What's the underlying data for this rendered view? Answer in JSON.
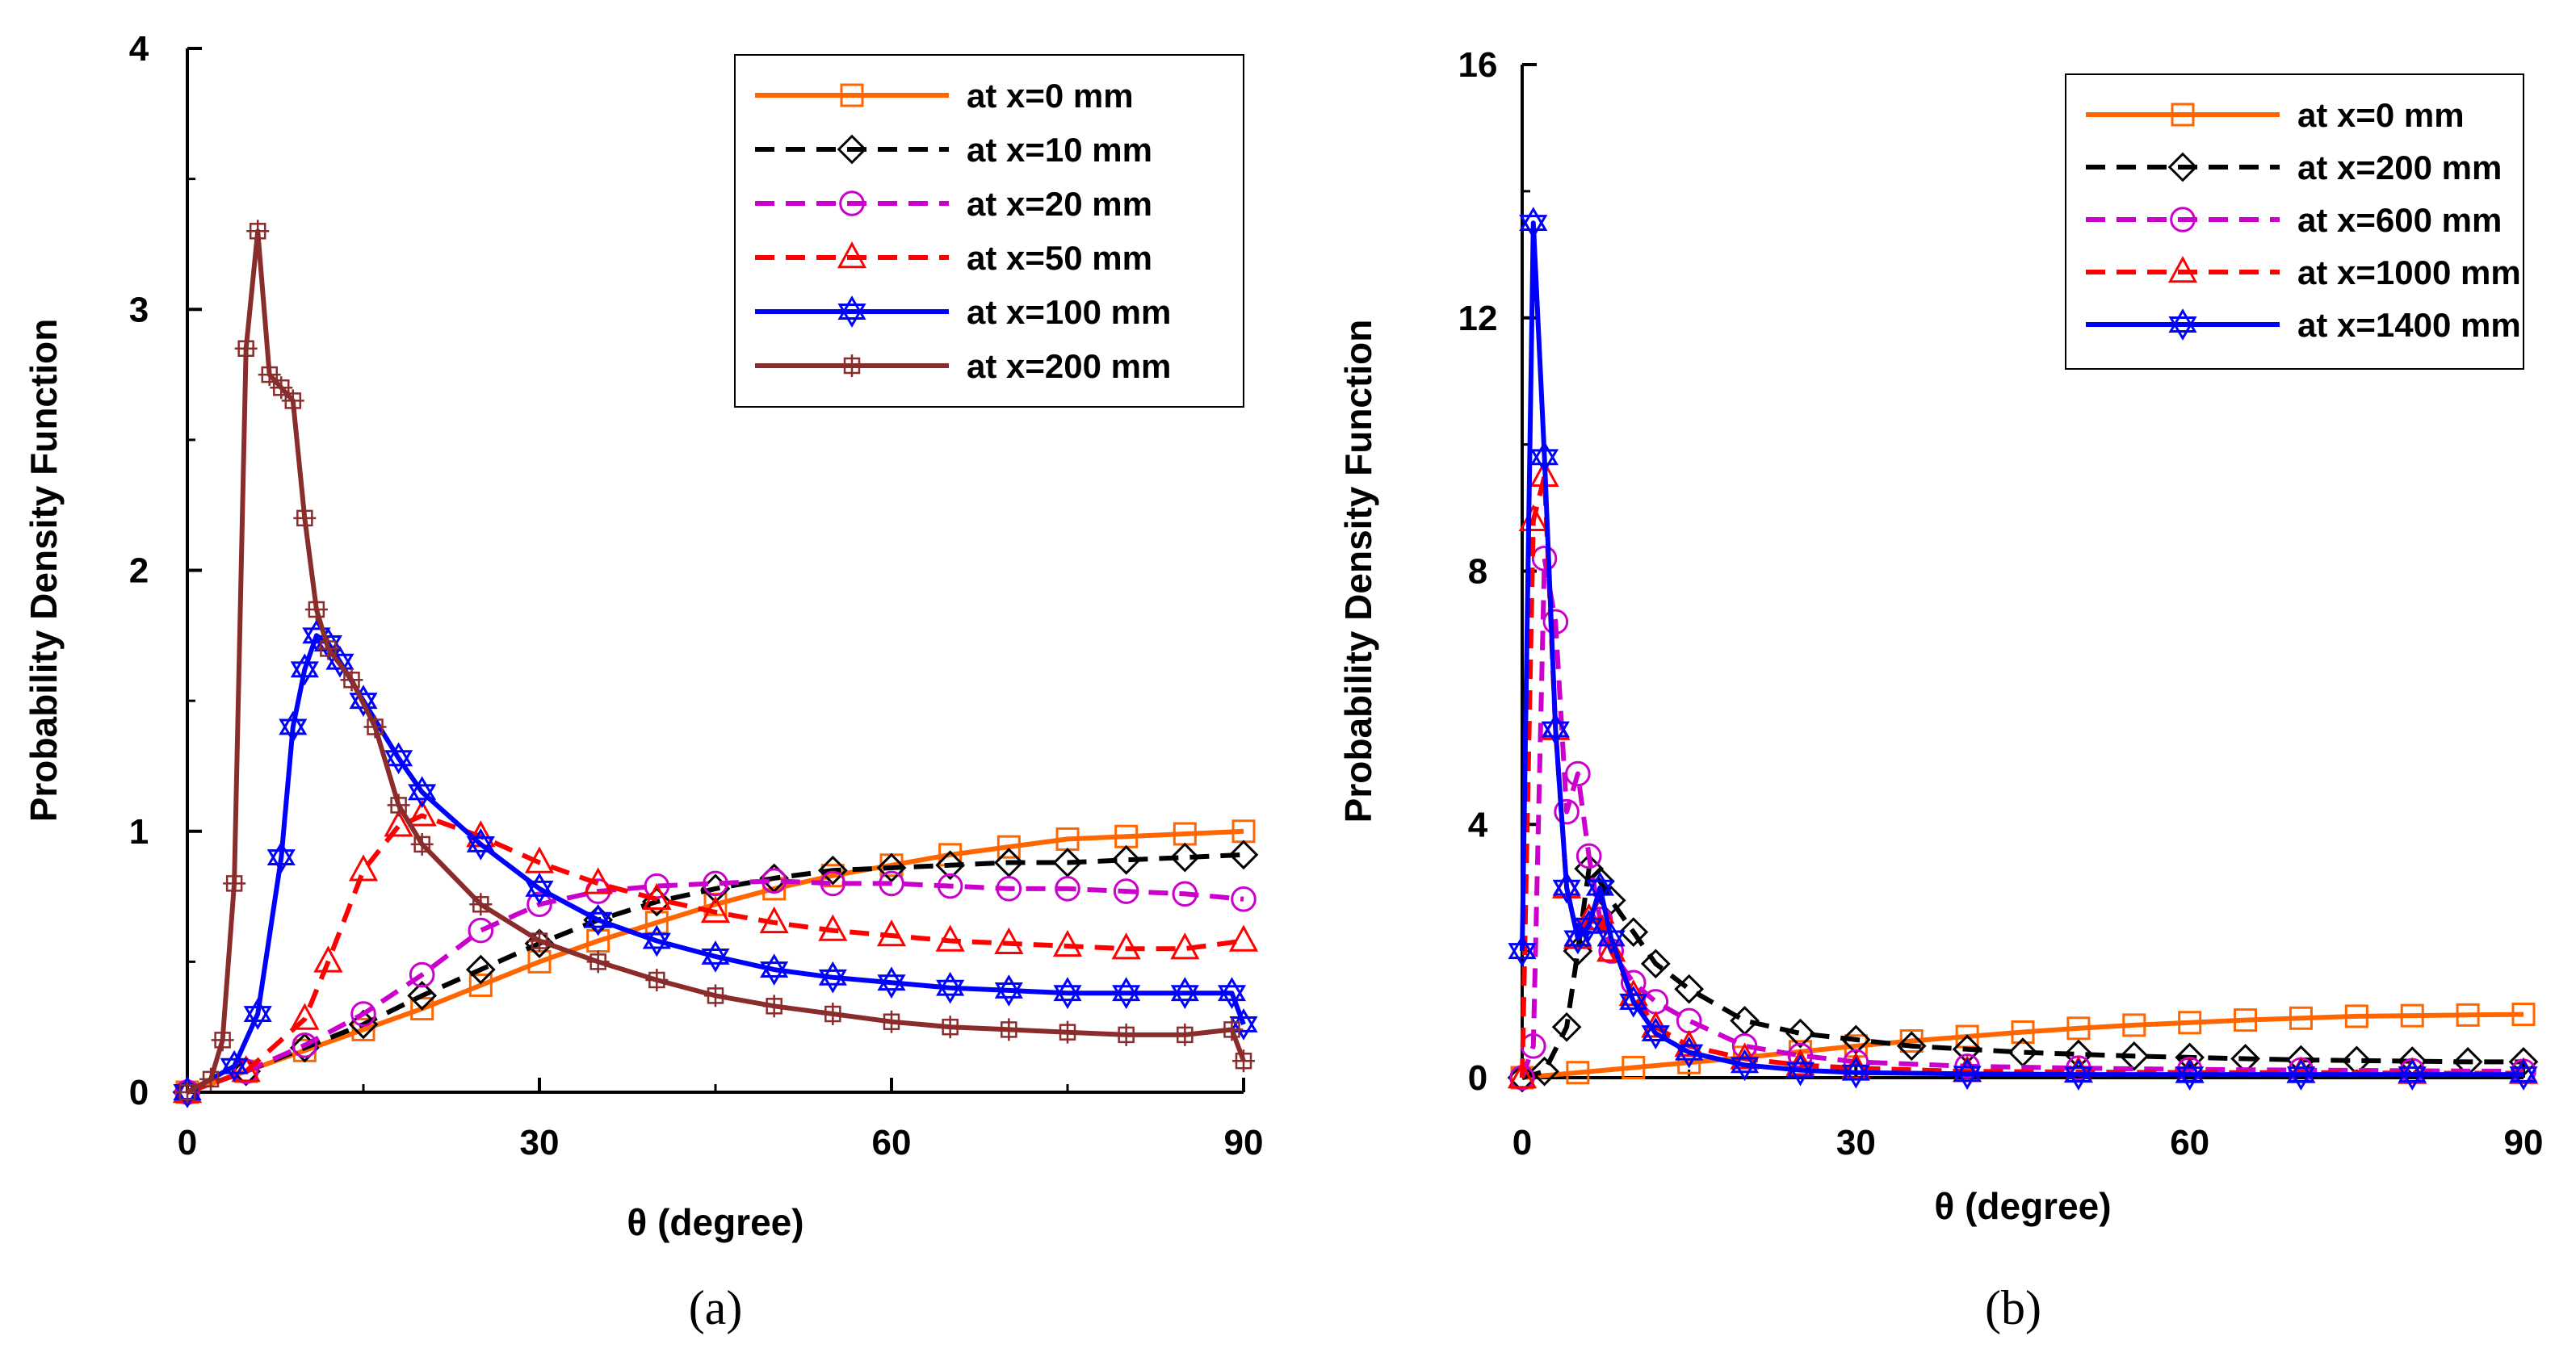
{
  "chart_data": [
    {
      "type": "line",
      "panel": "a",
      "caption": "(a)",
      "xlabel": "θ (degree)",
      "ylabel": "Probability Density Function",
      "xlim": [
        0,
        90
      ],
      "ylim": [
        0,
        4
      ],
      "xticks": [
        "0",
        "30",
        "60",
        "90"
      ],
      "yticks": [
        "0",
        "1",
        "2",
        "3",
        "4"
      ],
      "legend_position": "top-right",
      "series": [
        {
          "name": "at x=0 mm",
          "color": "#ff6600",
          "dash": "solid",
          "marker": "square",
          "x": [
            0,
            5,
            10,
            15,
            20,
            25,
            30,
            35,
            40,
            45,
            50,
            55,
            60,
            65,
            70,
            75,
            80,
            85,
            90
          ],
          "y": [
            0,
            0.08,
            0.16,
            0.24,
            0.32,
            0.41,
            0.5,
            0.58,
            0.65,
            0.72,
            0.78,
            0.83,
            0.87,
            0.91,
            0.94,
            0.97,
            0.98,
            0.99,
            1.0
          ]
        },
        {
          "name": "at x=10 mm",
          "color": "#000000",
          "dash": "dashed",
          "marker": "diamond",
          "x": [
            0,
            5,
            10,
            15,
            20,
            25,
            30,
            35,
            40,
            45,
            50,
            55,
            60,
            65,
            70,
            75,
            80,
            85,
            90
          ],
          "y": [
            0,
            0.08,
            0.17,
            0.26,
            0.37,
            0.47,
            0.57,
            0.66,
            0.73,
            0.78,
            0.82,
            0.85,
            0.86,
            0.87,
            0.88,
            0.88,
            0.89,
            0.9,
            0.91
          ]
        },
        {
          "name": "at x=20 mm",
          "color": "#cc00cc",
          "dash": "dashed",
          "marker": "circle",
          "x": [
            0,
            5,
            10,
            15,
            20,
            25,
            30,
            35,
            40,
            45,
            50,
            55,
            60,
            65,
            70,
            75,
            80,
            85,
            90
          ],
          "y": [
            0,
            0.08,
            0.18,
            0.3,
            0.45,
            0.62,
            0.72,
            0.77,
            0.79,
            0.8,
            0.81,
            0.8,
            0.8,
            0.79,
            0.78,
            0.78,
            0.77,
            0.76,
            0.74
          ]
        },
        {
          "name": "at x=50 mm",
          "color": "#ff0000",
          "dash": "dashed",
          "marker": "triangle",
          "x": [
            0,
            5,
            10,
            12,
            15,
            18,
            20,
            25,
            30,
            35,
            40,
            45,
            50,
            55,
            60,
            65,
            70,
            75,
            80,
            85,
            90
          ],
          "y": [
            0,
            0.08,
            0.28,
            0.5,
            0.85,
            1.02,
            1.06,
            0.98,
            0.88,
            0.8,
            0.74,
            0.69,
            0.65,
            0.62,
            0.6,
            0.58,
            0.57,
            0.56,
            0.55,
            0.55,
            0.58
          ]
        },
        {
          "name": "at x=100 mm",
          "color": "#0000ff",
          "dash": "solid",
          "marker": "star",
          "x": [
            0,
            4,
            6,
            8,
            9,
            10,
            11,
            12,
            13,
            15,
            18,
            20,
            25,
            30,
            35,
            40,
            45,
            50,
            55,
            60,
            65,
            70,
            75,
            80,
            85,
            89,
            90
          ],
          "y": [
            0,
            0.1,
            0.3,
            0.9,
            1.4,
            1.62,
            1.75,
            1.72,
            1.65,
            1.5,
            1.28,
            1.15,
            0.95,
            0.78,
            0.66,
            0.58,
            0.52,
            0.47,
            0.44,
            0.42,
            0.4,
            0.39,
            0.38,
            0.38,
            0.38,
            0.38,
            0.26
          ]
        },
        {
          "name": "at x=200 mm",
          "color": "#8b2c2c",
          "dash": "solid",
          "marker": "plus",
          "x": [
            0,
            2,
            3,
            4,
            5,
            6,
            7,
            8,
            9,
            10,
            11,
            12,
            14,
            16,
            18,
            20,
            25,
            30,
            35,
            40,
            45,
            50,
            55,
            60,
            65,
            70,
            75,
            80,
            85,
            89,
            90
          ],
          "y": [
            0,
            0.05,
            0.2,
            0.8,
            2.85,
            3.3,
            2.75,
            2.7,
            2.65,
            2.2,
            1.85,
            1.7,
            1.58,
            1.4,
            1.1,
            0.95,
            0.72,
            0.58,
            0.5,
            0.43,
            0.37,
            0.33,
            0.3,
            0.27,
            0.25,
            0.24,
            0.23,
            0.22,
            0.22,
            0.24,
            0.12
          ]
        }
      ]
    },
    {
      "type": "line",
      "panel": "b",
      "caption": "(b)",
      "xlabel": "θ (degree)",
      "ylabel": "Probability Density Function",
      "xlim": [
        0,
        90
      ],
      "ylim": [
        0,
        16
      ],
      "xticks": [
        "0",
        "30",
        "60",
        "90"
      ],
      "yticks": [
        "0",
        "4",
        "8",
        "12",
        "16"
      ],
      "legend_position": "top-right",
      "series": [
        {
          "name": "at x=0 mm",
          "color": "#ff6600",
          "dash": "solid",
          "marker": "square",
          "x": [
            0,
            5,
            10,
            15,
            20,
            25,
            30,
            35,
            40,
            45,
            50,
            55,
            60,
            65,
            70,
            75,
            80,
            85,
            90
          ],
          "y": [
            0,
            0.08,
            0.16,
            0.24,
            0.32,
            0.41,
            0.5,
            0.58,
            0.65,
            0.72,
            0.78,
            0.83,
            0.87,
            0.91,
            0.94,
            0.97,
            0.98,
            0.99,
            1.0
          ]
        },
        {
          "name": "at x=200 mm",
          "color": "#000000",
          "dash": "dashed",
          "marker": "diamond",
          "x": [
            0,
            2,
            4,
            5,
            6,
            7,
            8,
            10,
            12,
            15,
            20,
            25,
            30,
            35,
            40,
            45,
            50,
            55,
            60,
            65,
            70,
            75,
            80,
            85,
            90
          ],
          "y": [
            0,
            0.1,
            0.8,
            2.0,
            3.3,
            3.1,
            2.8,
            2.3,
            1.8,
            1.4,
            0.9,
            0.7,
            0.6,
            0.5,
            0.45,
            0.4,
            0.37,
            0.34,
            0.32,
            0.3,
            0.28,
            0.27,
            0.26,
            0.25,
            0.25
          ]
        },
        {
          "name": "at x=600 mm",
          "color": "#cc00cc",
          "dash": "dashed",
          "marker": "circle",
          "x": [
            0,
            1,
            2,
            3,
            4,
            5,
            6,
            7,
            8,
            10,
            12,
            15,
            20,
            25,
            30,
            40,
            50,
            60,
            70,
            80,
            90
          ],
          "y": [
            0,
            0.5,
            8.2,
            7.2,
            4.2,
            4.8,
            3.5,
            2.5,
            2.0,
            1.5,
            1.2,
            0.9,
            0.5,
            0.35,
            0.25,
            0.18,
            0.15,
            0.13,
            0.12,
            0.11,
            0.1
          ]
        },
        {
          "name": "at x=1000 mm",
          "color": "#ff0000",
          "dash": "dashed",
          "marker": "triangle",
          "x": [
            0,
            1,
            2,
            3,
            4,
            5,
            6,
            7,
            8,
            10,
            12,
            15,
            20,
            25,
            30,
            40,
            50,
            60,
            70,
            80,
            90
          ],
          "y": [
            0,
            8.8,
            9.5,
            5.5,
            3.0,
            2.2,
            2.5,
            2.6,
            2.0,
            1.3,
            0.8,
            0.5,
            0.3,
            0.2,
            0.15,
            0.1,
            0.09,
            0.08,
            0.08,
            0.07,
            0.07
          ]
        },
        {
          "name": "at x=1400 mm",
          "color": "#0000ff",
          "dash": "solid",
          "marker": "star",
          "x": [
            0,
            1,
            2,
            3,
            4,
            5,
            6,
            7,
            8,
            10,
            12,
            15,
            20,
            25,
            30,
            40,
            50,
            60,
            70,
            80,
            90
          ],
          "y": [
            2.0,
            13.5,
            9.8,
            5.5,
            3.0,
            2.2,
            2.4,
            3.0,
            2.2,
            1.2,
            0.7,
            0.4,
            0.2,
            0.12,
            0.08,
            0.06,
            0.05,
            0.05,
            0.05,
            0.05,
            0.05
          ]
        }
      ]
    }
  ]
}
